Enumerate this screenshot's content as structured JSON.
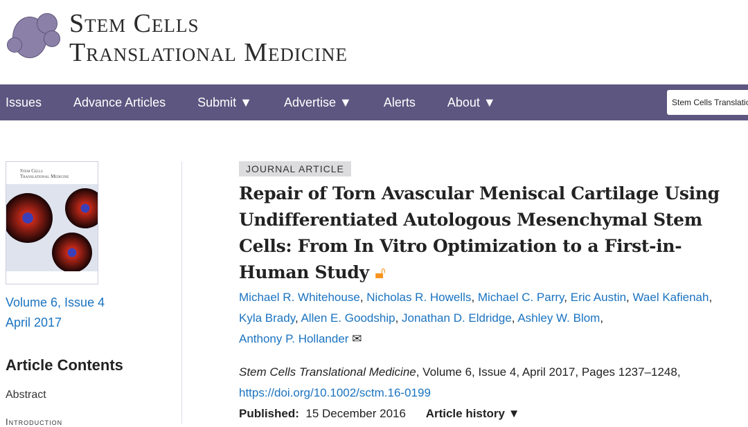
{
  "logo": {
    "line1": "Stem Cells",
    "line2": "Translational Medicine"
  },
  "nav": {
    "items": [
      "Issues",
      "Advance Articles",
      "Submit ▼",
      "Advertise ▼",
      "Alerts",
      "About ▼"
    ],
    "search_value": "Stem Cells Translational Medicine"
  },
  "sidebar": {
    "cover": {
      "title1": "Stem Cells",
      "title2": "Translational Medicine"
    },
    "volume": "Volume 6, Issue 4",
    "date": "April 2017",
    "contents_heading": "Article Contents",
    "contents": [
      "Abstract",
      "Introduction"
    ]
  },
  "article": {
    "type": "JOURNAL ARTICLE",
    "title": "Repair of Torn Avascular Meniscal Cartilage Using Undifferentiated Autologous Mesenchymal Stem Cells: From In Vitro Optimization to a First-in-Human Study",
    "authors": [
      "Michael R. Whitehouse",
      "Nicholas R. Howells",
      "Michael C. Parry",
      "Eric Austin",
      "Wael Kafienah",
      "Kyla Brady",
      "Allen E. Goodship",
      "Jonathan D. Eldridge",
      "Ashley W. Blom",
      "Anthony P. Hollander"
    ],
    "journal": "Stem Cells Translational Medicine",
    "citation_rest": ", Volume 6, Issue 4, April 2017, Pages 1237–1248,",
    "doi": "https://doi.org/10.1002/sctm.16-0199",
    "published_label": "Published:",
    "published_date": "15 December 2016",
    "history_label": "Article history ▼"
  },
  "colors": {
    "nav": "#5d5680",
    "link": "#1a73c0",
    "open_access": "#f7931d"
  }
}
